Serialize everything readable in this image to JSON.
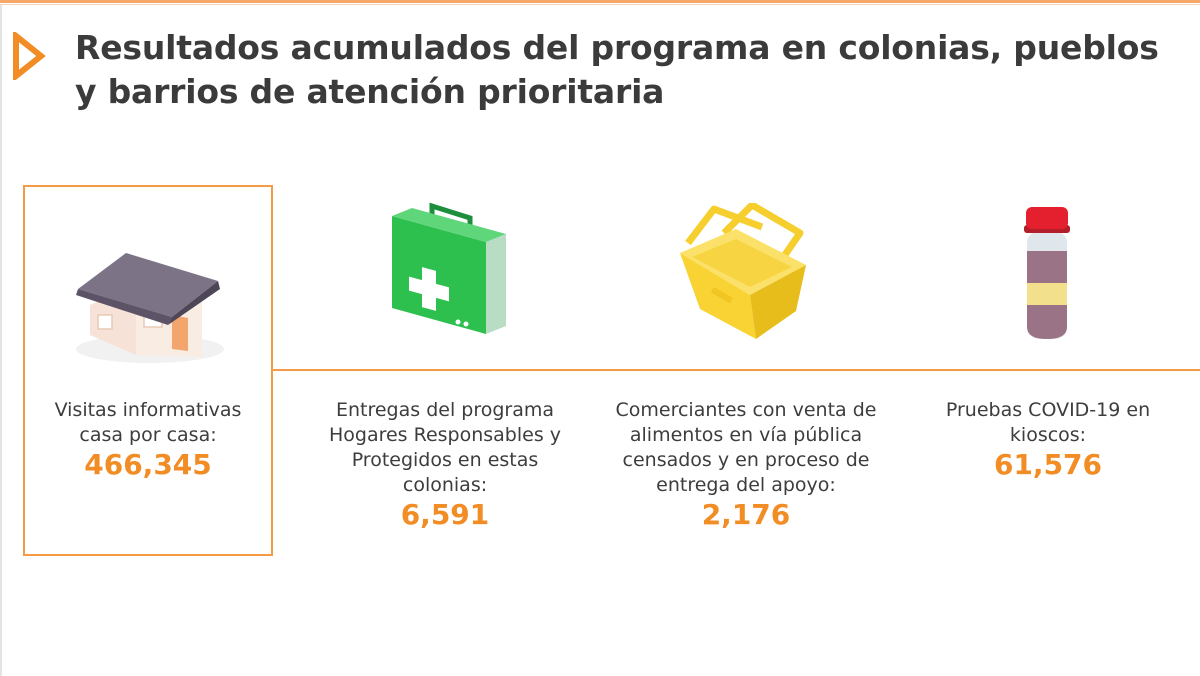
{
  "header": {
    "title": "Resultados acumulados del programa en colonias, pueblos y barrios de atención prioritaria"
  },
  "colors": {
    "accent": "#f28c24",
    "frame": "#f39c45",
    "text": "#3b3b3b"
  },
  "stats": [
    {
      "icon": "house-icon",
      "label": "Visitas informativas casa por casa:",
      "value": "466,345"
    },
    {
      "icon": "first-aid-kit-icon",
      "label": "Entregas del programa Hogares Responsables y Protegidos en estas colonias:",
      "value": "6,591"
    },
    {
      "icon": "basket-icon",
      "label": "Comerciantes con venta de alimentos en vía pública censados y en proceso de entrega del apoyo:",
      "value": "2,176"
    },
    {
      "icon": "test-tube-icon",
      "label": "Pruebas COVID-19 en kioscos:",
      "value": "61,576"
    }
  ]
}
